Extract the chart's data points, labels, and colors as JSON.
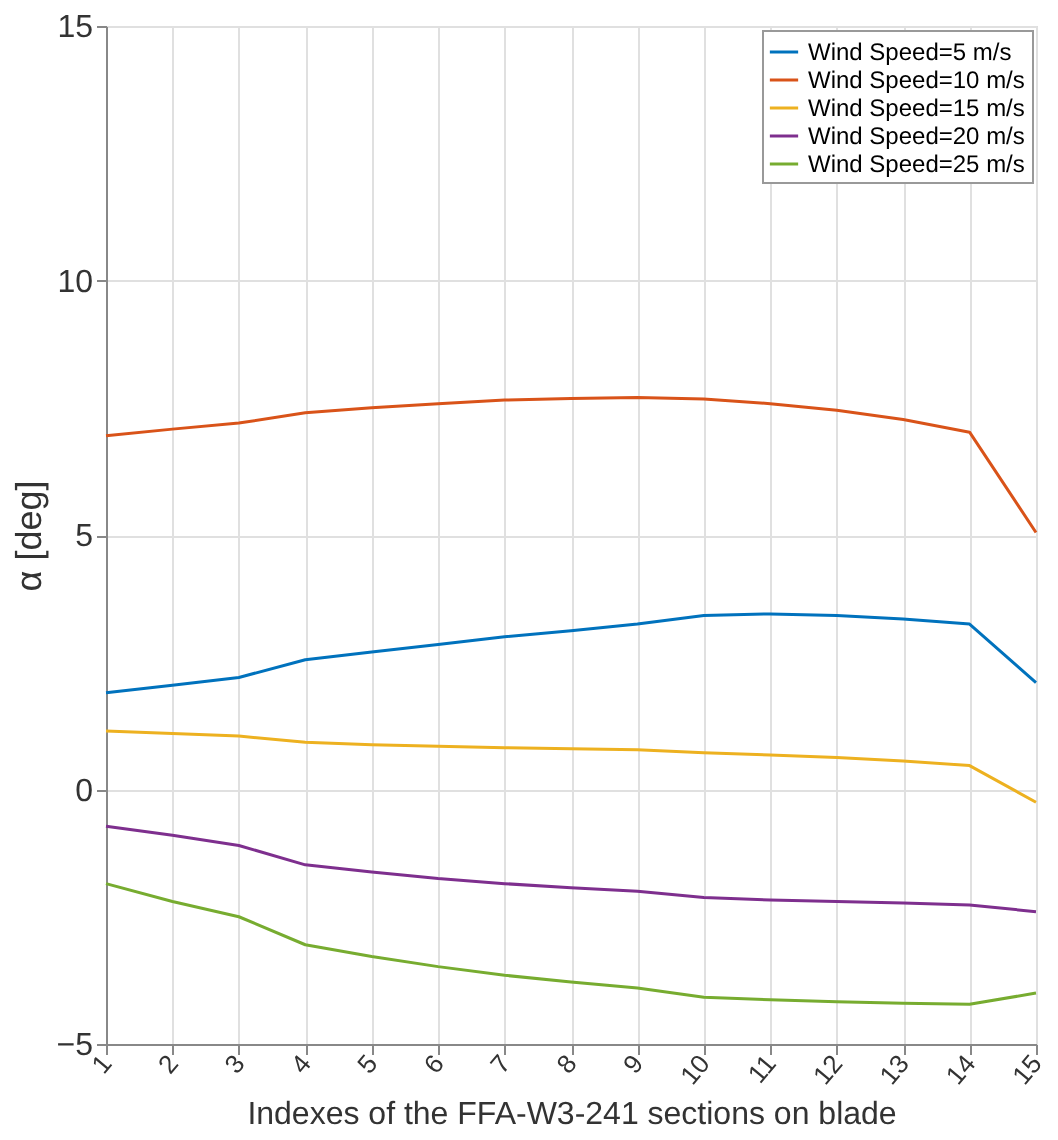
{
  "chart_data": {
    "type": "line",
    "xlabel": "Indexes of the FFA-W3-241 sections on blade",
    "ylabel": "α [deg]",
    "x": [
      1,
      2,
      3,
      4,
      5,
      6,
      7,
      8,
      9,
      10,
      11,
      12,
      13,
      14,
      15
    ],
    "series": [
      {
        "name": "Wind Speed=5 m/s",
        "color": "#0072bd",
        "values": [
          1.9,
          2.05,
          2.2,
          2.55,
          2.7,
          2.85,
          3.0,
          3.12,
          3.25,
          3.42,
          3.45,
          3.42,
          3.35,
          3.25,
          2.1
        ]
      },
      {
        "name": "Wind Speed=10 m/s",
        "color": "#d95319",
        "values": [
          6.95,
          7.08,
          7.2,
          7.4,
          7.5,
          7.58,
          7.65,
          7.68,
          7.7,
          7.67,
          7.58,
          7.45,
          7.27,
          7.02,
          5.05
        ]
      },
      {
        "name": "Wind Speed=15 m/s",
        "color": "#edb120",
        "values": [
          1.15,
          1.1,
          1.05,
          0.93,
          0.88,
          0.85,
          0.82,
          0.8,
          0.78,
          0.72,
          0.68,
          0.63,
          0.56,
          0.47,
          -0.25
        ]
      },
      {
        "name": "Wind Speed=20 m/s",
        "color": "#7e2f8e",
        "values": [
          -0.72,
          -0.9,
          -1.1,
          -1.48,
          -1.62,
          -1.75,
          -1.85,
          -1.93,
          -2.0,
          -2.12,
          -2.17,
          -2.2,
          -2.23,
          -2.27,
          -2.4
        ]
      },
      {
        "name": "Wind Speed=25 m/s",
        "color": "#77ac30",
        "values": [
          -1.85,
          -2.2,
          -2.5,
          -3.05,
          -3.28,
          -3.48,
          -3.65,
          -3.78,
          -3.9,
          -4.08,
          -4.13,
          -4.17,
          -4.2,
          -4.22,
          -4.0
        ]
      }
    ],
    "xlim": [
      1,
      15
    ],
    "xticks": [
      1,
      2,
      3,
      4,
      5,
      6,
      7,
      8,
      9,
      10,
      11,
      12,
      13,
      14,
      15
    ],
    "ylim": [
      -5,
      15
    ],
    "yticks": [
      -5,
      0,
      5,
      10,
      15
    ],
    "grid": true,
    "legend": "top right",
    "marker": "none",
    "line_style": "solid"
  }
}
